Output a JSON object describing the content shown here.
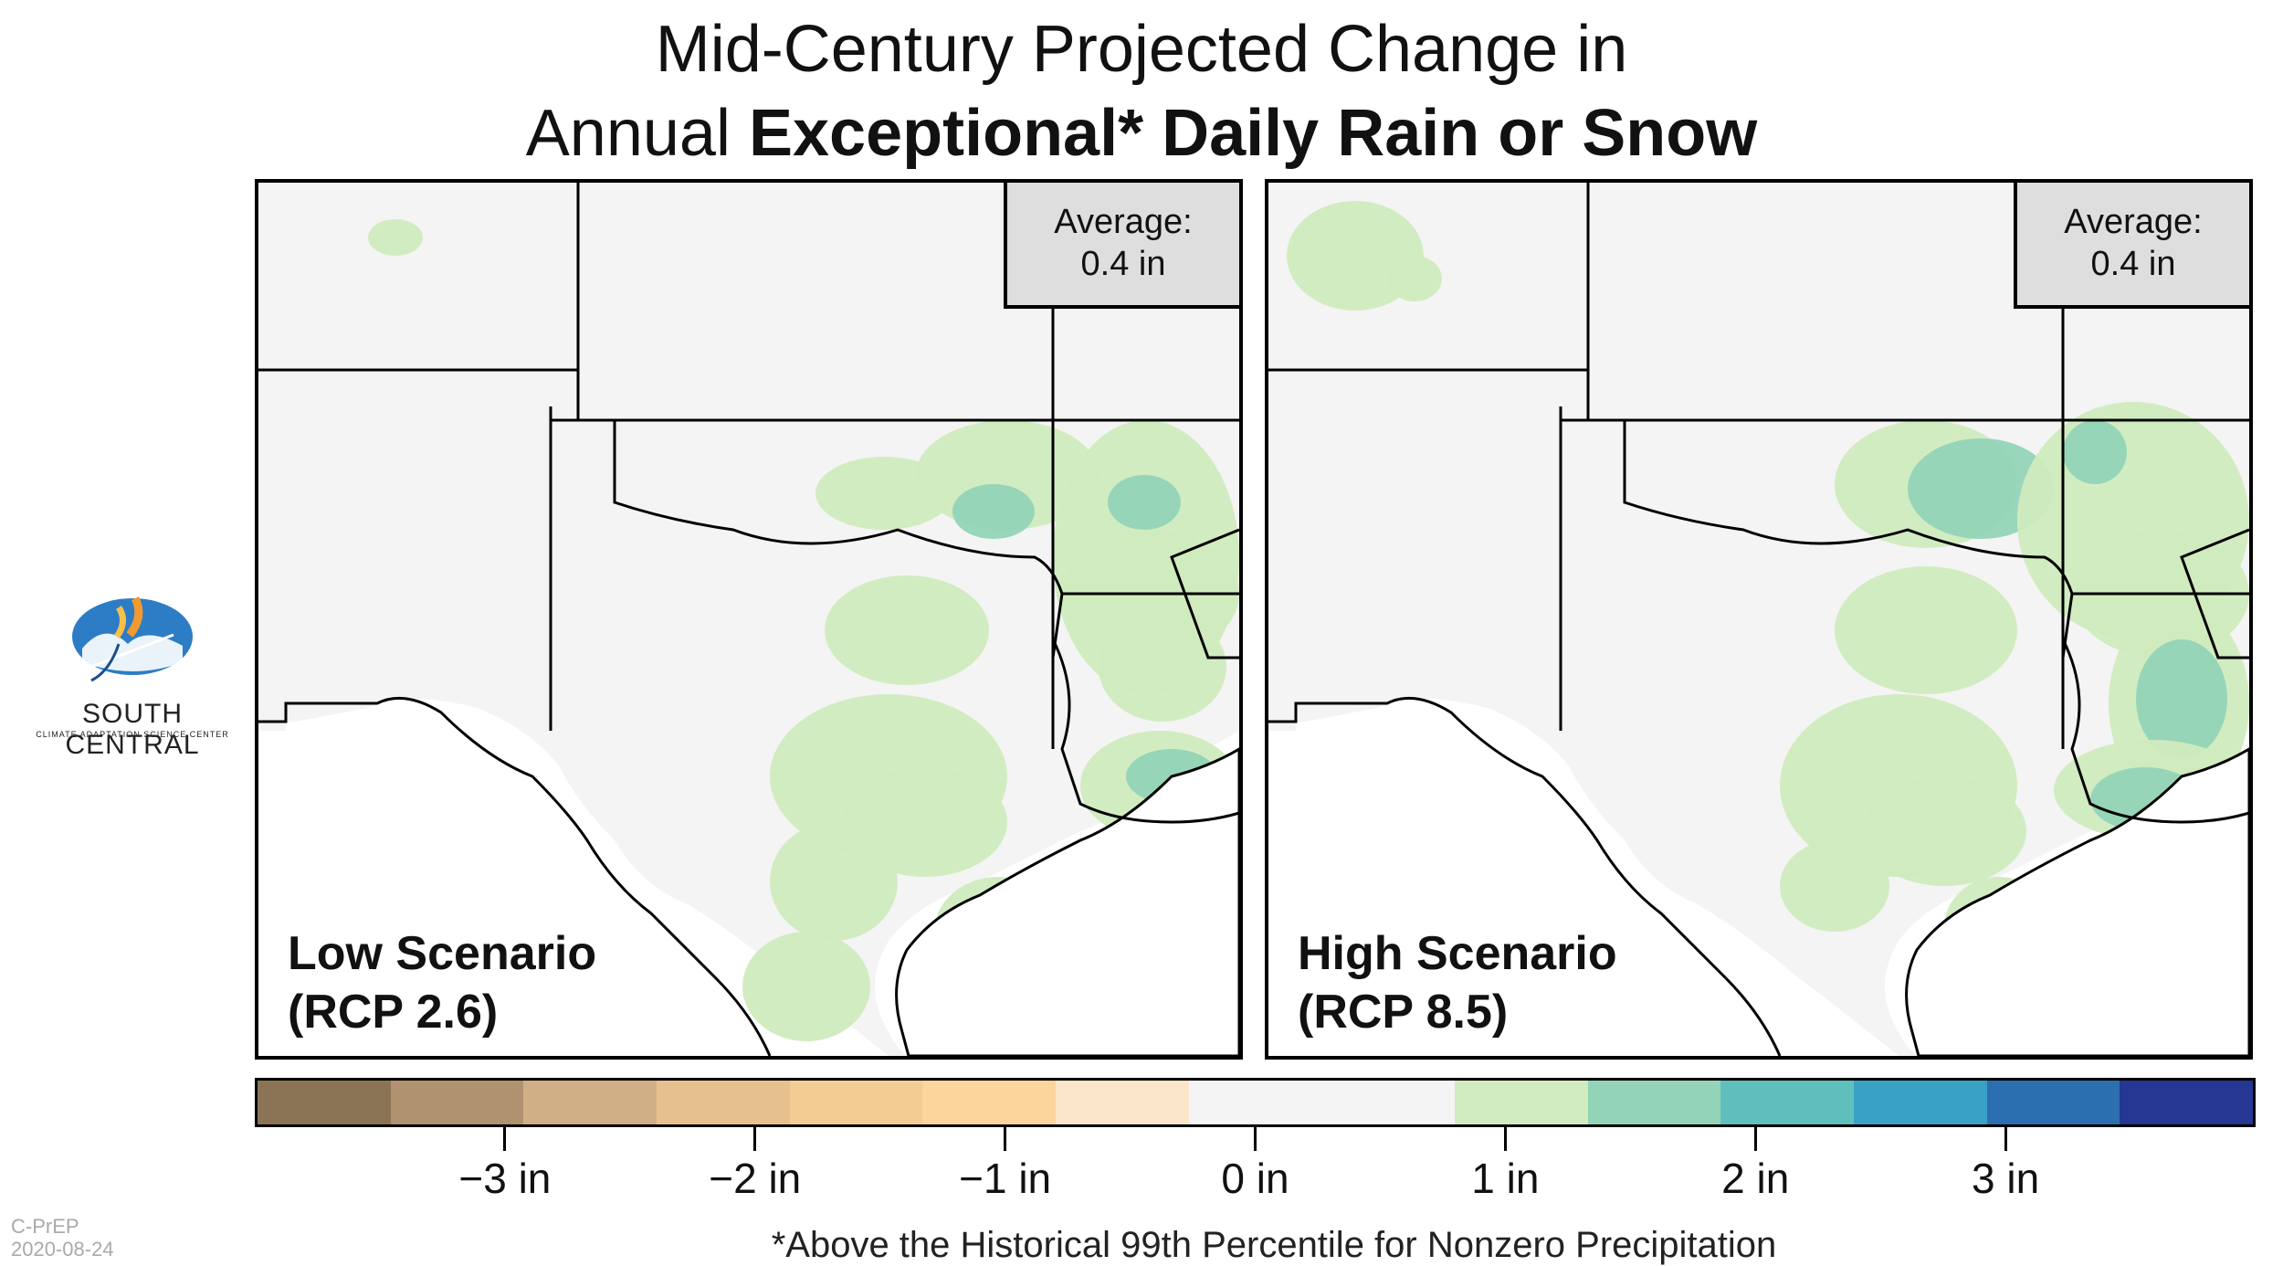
{
  "title": {
    "line1": "Mid-Century Projected Change in",
    "line2_prefix": "Annual ",
    "line2_bold": "Exceptional* Daily Rain or Snow"
  },
  "panels": [
    {
      "scenario_line1": "Low Scenario",
      "scenario_line2": "(RCP 2.6)",
      "average_label": "Average:",
      "average_value": "0.4 in"
    },
    {
      "scenario_line1": "High Scenario",
      "scenario_line2": "(RCP 8.5)",
      "average_label": "Average:",
      "average_value": "0.4 in"
    }
  ],
  "colorbar": {
    "colors": [
      "#8b7355",
      "#b09170",
      "#d0ae86",
      "#e6c18f",
      "#f3cc93",
      "#fcd59c",
      "#fbe6ca",
      "#f4f4f4",
      "#f4f4f4",
      "#d0ebbe",
      "#93d4b8",
      "#5fbfbd",
      "#3aa1c6",
      "#2b6fb1",
      "#263693"
    ],
    "ticks": [
      "−3 in",
      "−2 in",
      "−1 in",
      "0 in",
      "1 in",
      "2 in",
      "3 in"
    ],
    "tick_values": [
      -3,
      -2,
      -1,
      0,
      1,
      2,
      3
    ],
    "range": [
      -4,
      4
    ]
  },
  "footnote": "*Above the Historical 99th Percentile for Nonzero Precipitation",
  "logo": {
    "line1": "SOUTH CENTRAL",
    "line2": "CLIMATE ADAPTATION SCIENCE CENTER"
  },
  "credit": {
    "org": "C-PrEP",
    "date": "2020-08-24"
  }
}
